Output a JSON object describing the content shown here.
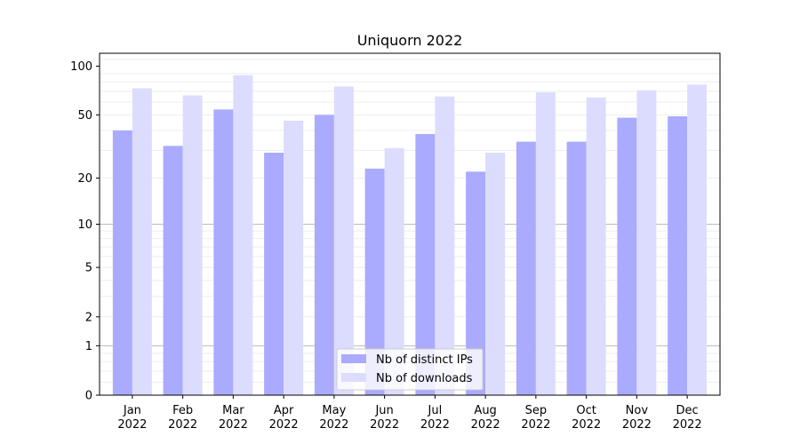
{
  "chart_data": {
    "type": "bar",
    "title": "Uniquorn 2022",
    "xlabel": "",
    "ylabel": "",
    "y_scale": "symlog",
    "ylim": [
      0,
      120
    ],
    "y_ticks": [
      0,
      1,
      2,
      5,
      10,
      20,
      50,
      100
    ],
    "grid": true,
    "legend_position": "bottom-center",
    "categories": [
      [
        "Jan",
        "2022"
      ],
      [
        "Feb",
        "2022"
      ],
      [
        "Mar",
        "2022"
      ],
      [
        "Apr",
        "2022"
      ],
      [
        "May",
        "2022"
      ],
      [
        "Jun",
        "2022"
      ],
      [
        "Jul",
        "2022"
      ],
      [
        "Aug",
        "2022"
      ],
      [
        "Sep",
        "2022"
      ],
      [
        "Oct",
        "2022"
      ],
      [
        "Nov",
        "2022"
      ],
      [
        "Dec",
        "2022"
      ]
    ],
    "series": [
      {
        "name": "Nb of distinct IPs",
        "color": "#aaaaff",
        "values": [
          40,
          32,
          54,
          29,
          50,
          23,
          38,
          22,
          34,
          34,
          48,
          49
        ]
      },
      {
        "name": "Nb of downloads",
        "color": "#dcdcff",
        "values": [
          73,
          66,
          88,
          46,
          75,
          31,
          65,
          29,
          69,
          64,
          71,
          77
        ]
      }
    ]
  }
}
